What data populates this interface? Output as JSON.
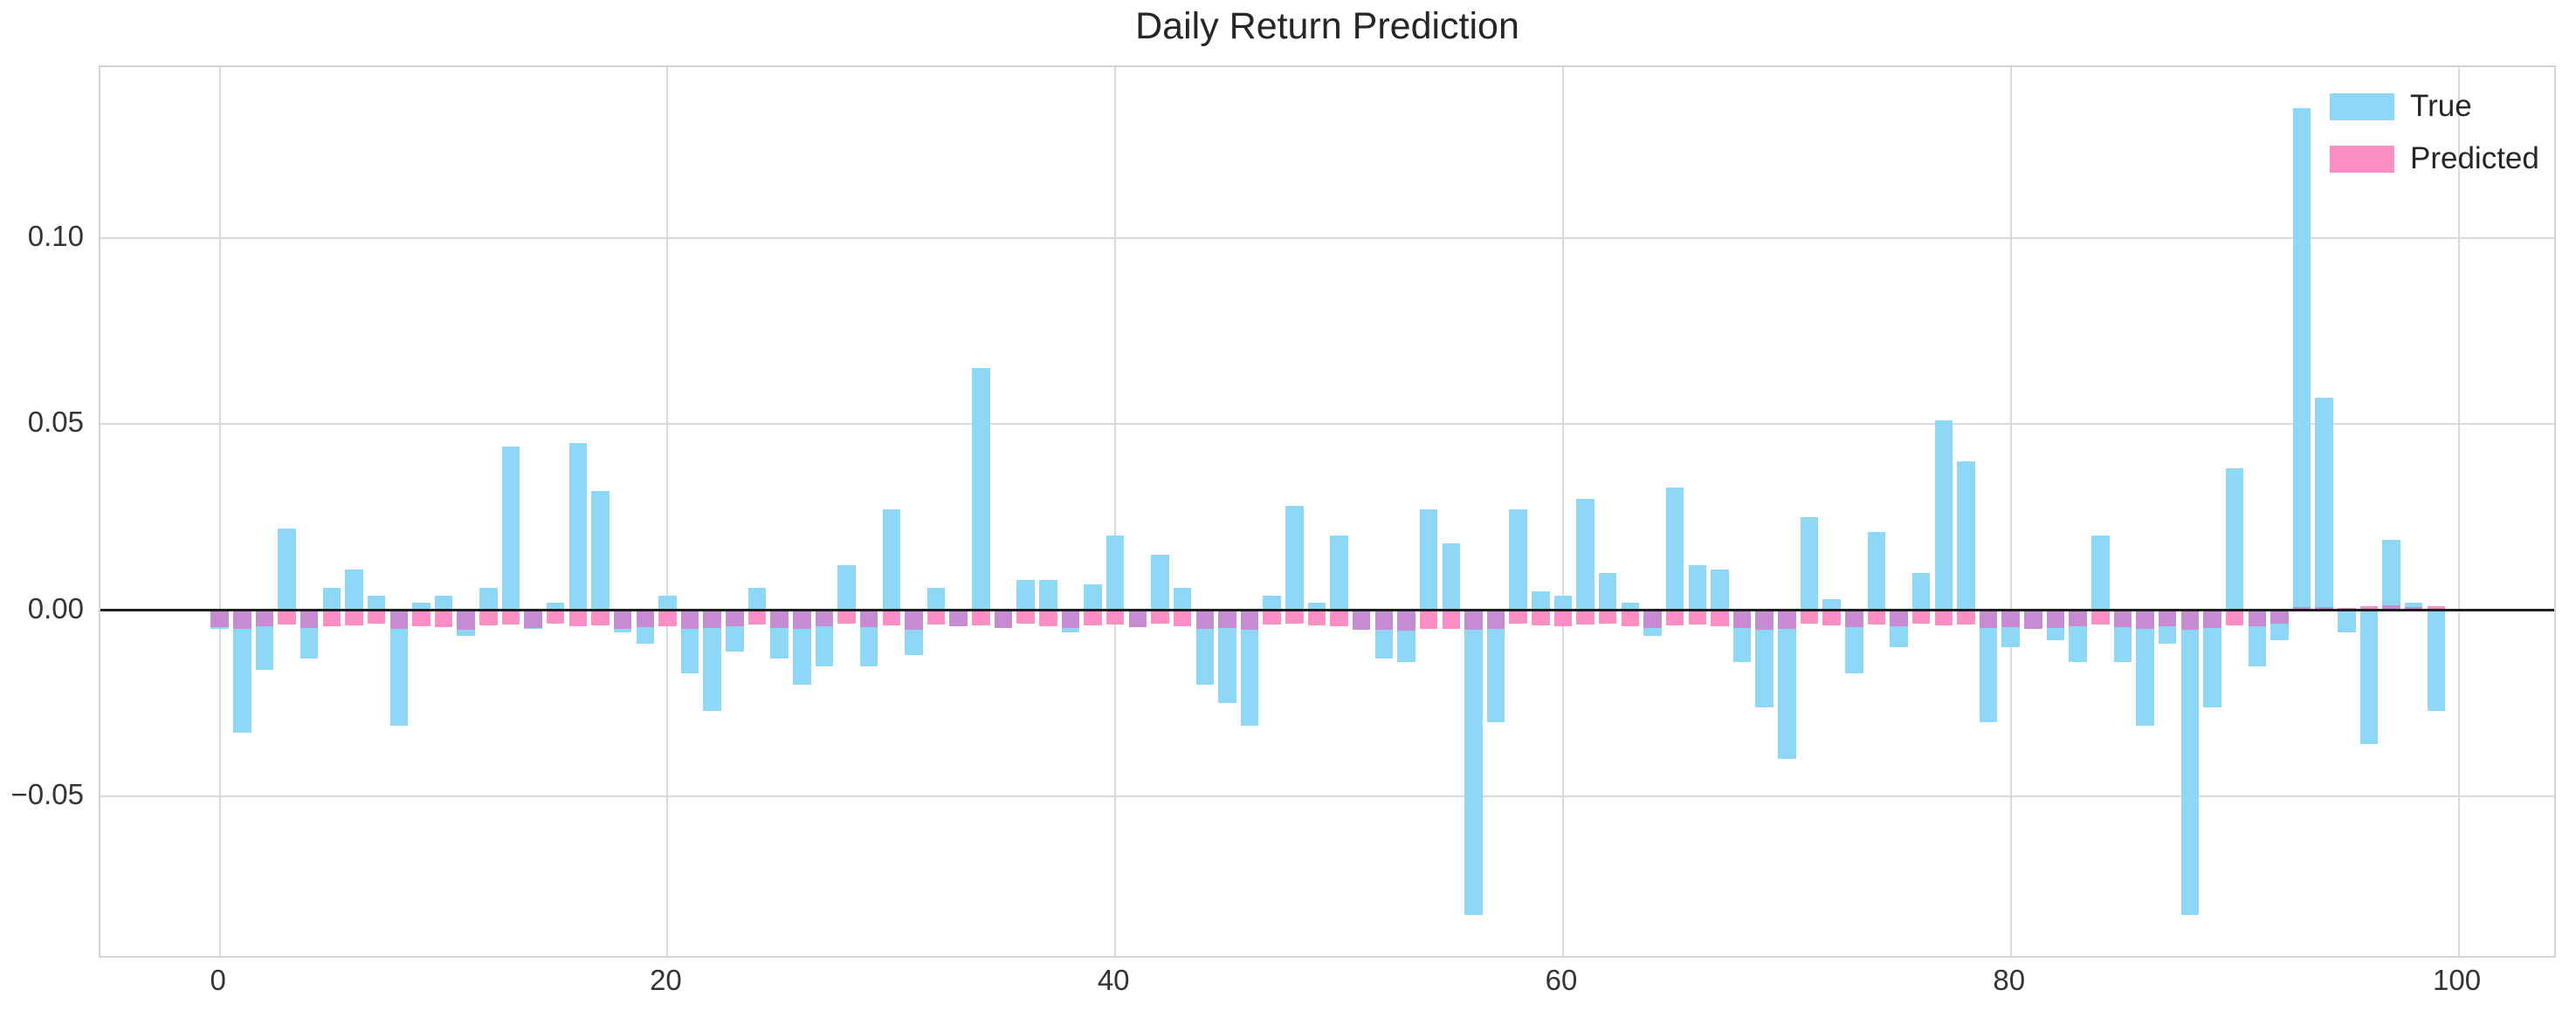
{
  "title": "Daily Return Prediction",
  "colors": {
    "true_bar": "#8dd7f7",
    "predicted_bar": "#fb8ec5",
    "overlap_bar": "#c78bd1",
    "grid": "#dadada",
    "zero_line": "#1f1f1f",
    "text": "#262626",
    "spine": "#d4d4d4"
  },
  "chart_data": {
    "type": "bar",
    "title": "Daily Return Prediction",
    "xlabel": "",
    "ylabel": "",
    "grid": true,
    "legend_position": "upper right",
    "x": "index 0..99",
    "xlim": [
      -5.33,
      104.27
    ],
    "ylim": [
      -0.0929,
      0.1459
    ],
    "bar_width": 0.8,
    "xticks": [
      0,
      20,
      40,
      60,
      80,
      100
    ],
    "xtick_labels": [
      "0",
      "20",
      "40",
      "60",
      "80",
      "100"
    ],
    "yticks": [
      -0.05,
      0.0,
      0.05,
      0.1
    ],
    "ytick_labels": [
      "−0.05",
      "0.00",
      "0.05",
      "0.10"
    ],
    "zero_line": 0.0,
    "series": [
      {
        "name": "True",
        "color": "#8dd7f7",
        "values": [
          -0.005,
          -0.033,
          -0.016,
          0.022,
          -0.013,
          0.006,
          0.011,
          0.004,
          -0.031,
          0.002,
          0.004,
          -0.007,
          0.006,
          0.044,
          -0.005,
          0.002,
          0.045,
          0.032,
          -0.006,
          -0.009,
          0.004,
          -0.017,
          -0.027,
          -0.011,
          0.006,
          -0.013,
          -0.02,
          -0.015,
          0.012,
          -0.015,
          0.027,
          -0.012,
          0.006,
          -0.003,
          0.065,
          -0.004,
          0.008,
          0.008,
          -0.006,
          0.007,
          0.02,
          -0.002,
          0.015,
          0.006,
          -0.02,
          -0.025,
          -0.031,
          0.004,
          0.028,
          0.002,
          0.02,
          -0.004,
          -0.013,
          -0.014,
          0.027,
          0.018,
          -0.082,
          -0.03,
          0.027,
          0.005,
          0.004,
          0.03,
          0.01,
          0.002,
          -0.007,
          0.033,
          0.012,
          0.011,
          -0.014,
          -0.026,
          -0.04,
          0.025,
          0.003,
          -0.017,
          0.021,
          -0.01,
          0.01,
          0.051,
          0.04,
          -0.03,
          -0.01,
          -0.005,
          -0.008,
          -0.014,
          0.02,
          -0.014,
          -0.031,
          -0.009,
          -0.082,
          -0.026,
          0.038,
          -0.015,
          -0.008,
          0.135,
          0.057,
          -0.006,
          -0.036,
          0.019,
          0.002,
          -0.027
        ]
      },
      {
        "name": "Predicted",
        "color": "#fb8ec5",
        "values": [
          -0.0046,
          -0.005,
          -0.0042,
          -0.0038,
          -0.0048,
          -0.0044,
          -0.004,
          -0.0036,
          -0.005,
          -0.0042,
          -0.0045,
          -0.0052,
          -0.004,
          -0.0038,
          -0.0047,
          -0.0036,
          -0.0042,
          -0.004,
          -0.005,
          -0.0046,
          -0.0044,
          -0.005,
          -0.0047,
          -0.0042,
          -0.0038,
          -0.0048,
          -0.005,
          -0.0044,
          -0.0036,
          -0.0046,
          -0.004,
          -0.0052,
          -0.0038,
          -0.0044,
          -0.004,
          -0.0048,
          -0.0036,
          -0.0042,
          -0.0047,
          -0.004,
          -0.0038,
          -0.0045,
          -0.0036,
          -0.0042,
          -0.005,
          -0.0047,
          -0.0052,
          -0.0038,
          -0.0036,
          -0.004,
          -0.0042,
          -0.0053,
          -0.0053,
          -0.0055,
          -0.005,
          -0.005,
          -0.0052,
          -0.005,
          -0.0037,
          -0.004,
          -0.0042,
          -0.0038,
          -0.0036,
          -0.0044,
          -0.0048,
          -0.004,
          -0.0038,
          -0.0042,
          -0.0047,
          -0.0052,
          -0.005,
          -0.0036,
          -0.004,
          -0.0046,
          -0.0038,
          -0.0044,
          -0.0036,
          -0.004,
          -0.0038,
          -0.0048,
          -0.0046,
          -0.005,
          -0.0047,
          -0.0043,
          -0.0038,
          -0.0045,
          -0.005,
          -0.0042,
          -0.0052,
          -0.0047,
          -0.004,
          -0.0042,
          -0.0035,
          0.0008,
          0.0008,
          0.0005,
          0.001,
          0.0012,
          0.0008,
          0.001
        ]
      }
    ]
  },
  "legend": {
    "items": [
      {
        "label": "True",
        "color": "#8dd7f7"
      },
      {
        "label": "Predicted",
        "color": "#fb8ec5"
      }
    ]
  }
}
